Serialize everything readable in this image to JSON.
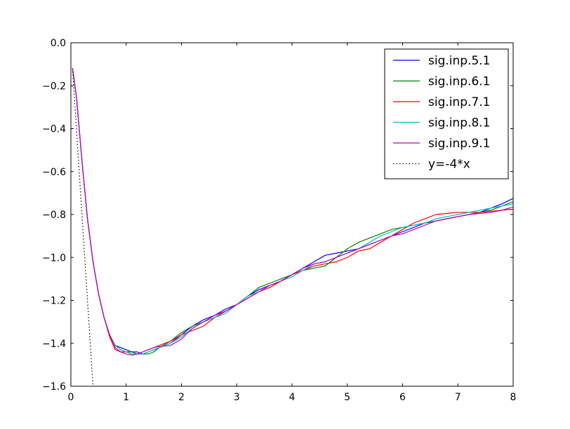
{
  "chart_data": {
    "type": "line",
    "title": "",
    "xlabel": "",
    "ylabel": "",
    "xlim": [
      0,
      8
    ],
    "ylim": [
      -1.6,
      0.0
    ],
    "xticks": [
      0,
      1,
      2,
      3,
      4,
      5,
      6,
      7,
      8
    ],
    "yticks": [
      0.0,
      -0.2,
      -0.4,
      -0.6,
      -0.8,
      -1.0,
      -1.2,
      -1.4,
      -1.6
    ],
    "xtick_labels": [
      "0",
      "1",
      "2",
      "3",
      "4",
      "5",
      "6",
      "7",
      "8"
    ],
    "ytick_labels": [
      "0.0",
      "−0.2",
      "−0.4",
      "−0.6",
      "−0.8",
      "−1.0",
      "−1.2",
      "−1.4",
      "−1.6"
    ],
    "grid": false,
    "legend_position": "top-right",
    "series": [
      {
        "name": "sig.inp.5.1",
        "color": "#0000ff",
        "style": "solid",
        "points": [
          [
            0.03,
            -0.12
          ],
          [
            0.1,
            -0.25
          ],
          [
            0.2,
            -0.55
          ],
          [
            0.3,
            -0.82
          ],
          [
            0.4,
            -1.02
          ],
          [
            0.5,
            -1.17
          ],
          [
            0.6,
            -1.28
          ],
          [
            0.7,
            -1.36
          ],
          [
            0.8,
            -1.41
          ],
          [
            0.9,
            -1.42
          ],
          [
            1.0,
            -1.43
          ],
          [
            1.1,
            -1.44
          ],
          [
            1.2,
            -1.44
          ],
          [
            1.3,
            -1.45
          ],
          [
            1.4,
            -1.44
          ],
          [
            1.5,
            -1.43
          ],
          [
            1.6,
            -1.42
          ],
          [
            1.8,
            -1.4
          ],
          [
            2.0,
            -1.36
          ],
          [
            2.2,
            -1.32
          ],
          [
            2.4,
            -1.29
          ],
          [
            2.6,
            -1.27
          ],
          [
            2.8,
            -1.24
          ],
          [
            3.0,
            -1.22
          ],
          [
            3.2,
            -1.18
          ],
          [
            3.4,
            -1.15
          ],
          [
            3.6,
            -1.13
          ],
          [
            3.8,
            -1.11
          ],
          [
            4.0,
            -1.08
          ],
          [
            4.2,
            -1.05
          ],
          [
            4.4,
            -1.02
          ],
          [
            4.6,
            -0.99
          ],
          [
            4.8,
            -0.98
          ],
          [
            5.0,
            -0.97
          ],
          [
            5.2,
            -0.96
          ],
          [
            5.4,
            -0.94
          ],
          [
            5.6,
            -0.92
          ],
          [
            5.8,
            -0.9
          ],
          [
            6.0,
            -0.88
          ],
          [
            6.2,
            -0.86
          ],
          [
            6.4,
            -0.84
          ],
          [
            6.6,
            -0.83
          ],
          [
            6.8,
            -0.82
          ],
          [
            7.0,
            -0.81
          ],
          [
            7.2,
            -0.8
          ],
          [
            7.4,
            -0.79
          ],
          [
            7.6,
            -0.77
          ],
          [
            7.8,
            -0.75
          ],
          [
            8.0,
            -0.725
          ]
        ]
      },
      {
        "name": "sig.inp.6.1",
        "color": "#008000",
        "style": "solid",
        "points": [
          [
            0.03,
            -0.12
          ],
          [
            0.1,
            -0.25
          ],
          [
            0.2,
            -0.55
          ],
          [
            0.3,
            -0.82
          ],
          [
            0.4,
            -1.02
          ],
          [
            0.5,
            -1.17
          ],
          [
            0.6,
            -1.28
          ],
          [
            0.7,
            -1.36
          ],
          [
            0.8,
            -1.41
          ],
          [
            0.9,
            -1.43
          ],
          [
            1.0,
            -1.44
          ],
          [
            1.1,
            -1.44
          ],
          [
            1.2,
            -1.45
          ],
          [
            1.3,
            -1.45
          ],
          [
            1.4,
            -1.45
          ],
          [
            1.5,
            -1.44
          ],
          [
            1.6,
            -1.42
          ],
          [
            1.8,
            -1.39
          ],
          [
            2.0,
            -1.35
          ],
          [
            2.2,
            -1.32
          ],
          [
            2.4,
            -1.3
          ],
          [
            2.6,
            -1.28
          ],
          [
            2.8,
            -1.25
          ],
          [
            3.0,
            -1.22
          ],
          [
            3.2,
            -1.18
          ],
          [
            3.4,
            -1.14
          ],
          [
            3.6,
            -1.12
          ],
          [
            3.8,
            -1.1
          ],
          [
            4.0,
            -1.08
          ],
          [
            4.2,
            -1.06
          ],
          [
            4.4,
            -1.05
          ],
          [
            4.6,
            -1.04
          ],
          [
            4.8,
            -1.0
          ],
          [
            5.0,
            -0.96
          ],
          [
            5.2,
            -0.93
          ],
          [
            5.4,
            -0.91
          ],
          [
            5.6,
            -0.89
          ],
          [
            5.8,
            -0.87
          ],
          [
            6.0,
            -0.86
          ],
          [
            6.2,
            -0.85
          ],
          [
            6.4,
            -0.84
          ],
          [
            6.6,
            -0.83
          ],
          [
            6.8,
            -0.82
          ],
          [
            7.0,
            -0.81
          ],
          [
            7.2,
            -0.8
          ],
          [
            7.4,
            -0.79
          ],
          [
            7.6,
            -0.78
          ],
          [
            7.8,
            -0.76
          ],
          [
            8.0,
            -0.74
          ]
        ]
      },
      {
        "name": "sig.inp.7.1",
        "color": "#ff0000",
        "style": "solid",
        "points": [
          [
            0.03,
            -0.12
          ],
          [
            0.1,
            -0.25
          ],
          [
            0.2,
            -0.55
          ],
          [
            0.3,
            -0.82
          ],
          [
            0.4,
            -1.02
          ],
          [
            0.5,
            -1.17
          ],
          [
            0.6,
            -1.28
          ],
          [
            0.7,
            -1.37
          ],
          [
            0.8,
            -1.43
          ],
          [
            0.9,
            -1.44
          ],
          [
            1.0,
            -1.44
          ],
          [
            1.1,
            -1.45
          ],
          [
            1.2,
            -1.45
          ],
          [
            1.3,
            -1.44
          ],
          [
            1.4,
            -1.43
          ],
          [
            1.5,
            -1.42
          ],
          [
            1.6,
            -1.41
          ],
          [
            1.8,
            -1.39
          ],
          [
            2.0,
            -1.36
          ],
          [
            2.2,
            -1.34
          ],
          [
            2.4,
            -1.32
          ],
          [
            2.6,
            -1.28
          ],
          [
            2.8,
            -1.25
          ],
          [
            3.0,
            -1.22
          ],
          [
            3.2,
            -1.19
          ],
          [
            3.4,
            -1.16
          ],
          [
            3.6,
            -1.14
          ],
          [
            3.8,
            -1.11
          ],
          [
            4.0,
            -1.08
          ],
          [
            4.2,
            -1.06
          ],
          [
            4.4,
            -1.04
          ],
          [
            4.6,
            -1.03
          ],
          [
            4.8,
            -1.02
          ],
          [
            5.0,
            -1.0
          ],
          [
            5.2,
            -0.97
          ],
          [
            5.4,
            -0.96
          ],
          [
            5.6,
            -0.93
          ],
          [
            5.8,
            -0.9
          ],
          [
            6.0,
            -0.87
          ],
          [
            6.2,
            -0.84
          ],
          [
            6.4,
            -0.82
          ],
          [
            6.6,
            -0.8
          ],
          [
            6.8,
            -0.795
          ],
          [
            7.0,
            -0.79
          ],
          [
            7.2,
            -0.79
          ],
          [
            7.4,
            -0.79
          ],
          [
            7.6,
            -0.785
          ],
          [
            7.8,
            -0.78
          ],
          [
            8.0,
            -0.775
          ]
        ]
      },
      {
        "name": "sig.inp.8.1",
        "color": "#00bfbf",
        "style": "solid",
        "points": [
          [
            0.03,
            -0.12
          ],
          [
            0.1,
            -0.25
          ],
          [
            0.2,
            -0.55
          ],
          [
            0.3,
            -0.82
          ],
          [
            0.4,
            -1.02
          ],
          [
            0.5,
            -1.17
          ],
          [
            0.6,
            -1.28
          ],
          [
            0.7,
            -1.36
          ],
          [
            0.8,
            -1.41
          ],
          [
            0.9,
            -1.43
          ],
          [
            1.0,
            -1.44
          ],
          [
            1.1,
            -1.45
          ],
          [
            1.2,
            -1.45
          ],
          [
            1.3,
            -1.45
          ],
          [
            1.4,
            -1.44
          ],
          [
            1.5,
            -1.43
          ],
          [
            1.6,
            -1.42
          ],
          [
            1.8,
            -1.4
          ],
          [
            2.0,
            -1.37
          ],
          [
            2.2,
            -1.33
          ],
          [
            2.4,
            -1.3
          ],
          [
            2.6,
            -1.28
          ],
          [
            2.8,
            -1.26
          ],
          [
            3.0,
            -1.22
          ],
          [
            3.2,
            -1.18
          ],
          [
            3.4,
            -1.16
          ],
          [
            3.6,
            -1.13
          ],
          [
            3.8,
            -1.11
          ],
          [
            4.0,
            -1.09
          ],
          [
            4.2,
            -1.06
          ],
          [
            4.4,
            -1.03
          ],
          [
            4.6,
            -1.02
          ],
          [
            4.8,
            -1.0
          ],
          [
            5.0,
            -0.98
          ],
          [
            5.2,
            -0.96
          ],
          [
            5.4,
            -0.93
          ],
          [
            5.6,
            -0.9
          ],
          [
            5.8,
            -0.88
          ],
          [
            6.0,
            -0.86
          ],
          [
            6.2,
            -0.85
          ],
          [
            6.4,
            -0.84
          ],
          [
            6.6,
            -0.82
          ],
          [
            6.8,
            -0.81
          ],
          [
            7.0,
            -0.8
          ],
          [
            7.2,
            -0.79
          ],
          [
            7.4,
            -0.78
          ],
          [
            7.6,
            -0.77
          ],
          [
            7.8,
            -0.76
          ],
          [
            8.0,
            -0.75
          ]
        ]
      },
      {
        "name": "sig.inp.9.1",
        "color": "#bf00bf",
        "style": "solid",
        "points": [
          [
            0.03,
            -0.12
          ],
          [
            0.1,
            -0.25
          ],
          [
            0.2,
            -0.55
          ],
          [
            0.3,
            -0.82
          ],
          [
            0.4,
            -1.02
          ],
          [
            0.5,
            -1.17
          ],
          [
            0.6,
            -1.28
          ],
          [
            0.7,
            -1.36
          ],
          [
            0.8,
            -1.42
          ],
          [
            0.9,
            -1.44
          ],
          [
            1.0,
            -1.45
          ],
          [
            1.1,
            -1.455
          ],
          [
            1.2,
            -1.45
          ],
          [
            1.3,
            -1.44
          ],
          [
            1.4,
            -1.43
          ],
          [
            1.5,
            -1.42
          ],
          [
            1.6,
            -1.415
          ],
          [
            1.8,
            -1.41
          ],
          [
            2.0,
            -1.38
          ],
          [
            2.2,
            -1.33
          ],
          [
            2.4,
            -1.3
          ],
          [
            2.6,
            -1.27
          ],
          [
            2.8,
            -1.25
          ],
          [
            3.0,
            -1.22
          ],
          [
            3.2,
            -1.19
          ],
          [
            3.4,
            -1.16
          ],
          [
            3.6,
            -1.13
          ],
          [
            3.8,
            -1.11
          ],
          [
            4.0,
            -1.08
          ],
          [
            4.2,
            -1.05
          ],
          [
            4.4,
            -1.03
          ],
          [
            4.6,
            -1.02
          ],
          [
            4.8,
            -1.0
          ],
          [
            5.0,
            -0.98
          ],
          [
            5.2,
            -0.96
          ],
          [
            5.4,
            -0.94
          ],
          [
            5.6,
            -0.92
          ],
          [
            5.8,
            -0.9
          ],
          [
            6.0,
            -0.89
          ],
          [
            6.2,
            -0.87
          ],
          [
            6.4,
            -0.85
          ],
          [
            6.6,
            -0.83
          ],
          [
            6.8,
            -0.82
          ],
          [
            7.0,
            -0.81
          ],
          [
            7.2,
            -0.8
          ],
          [
            7.4,
            -0.795
          ],
          [
            7.6,
            -0.79
          ],
          [
            7.8,
            -0.78
          ],
          [
            8.0,
            -0.765
          ]
        ]
      },
      {
        "name": "y=-4*x",
        "color": "#000000",
        "style": "dotted",
        "points": [
          [
            0.03,
            -0.12
          ],
          [
            0.4,
            -1.6
          ]
        ]
      }
    ]
  }
}
